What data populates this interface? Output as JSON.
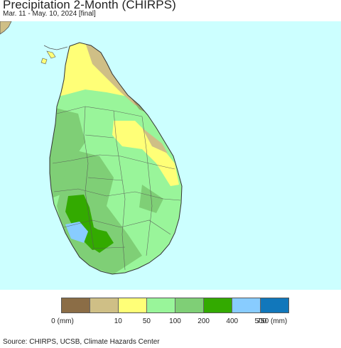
{
  "header": {
    "title": "Precipitation 2-Month (CHIRPS)",
    "subtitle": "Mar. 11 - May. 10, 2024 [final]"
  },
  "map": {
    "region": "Sri Lanka",
    "ocean_color": "#ccffff",
    "boundary_color": "#555555"
  },
  "legend": {
    "colors": [
      "#8b6d46",
      "#cfbf86",
      "#ffff77",
      "#99f59a",
      "#7fcf76",
      "#33aa00",
      "#88ccff",
      "#1177bb"
    ],
    "tick_labels": [
      "0 (mm)",
      "10",
      "50",
      "100",
      "200",
      "400",
      "500",
      "750 (mm)"
    ]
  },
  "footer": {
    "source": "Source: CHIRPS, UCSB, Climate Hazards Center"
  }
}
